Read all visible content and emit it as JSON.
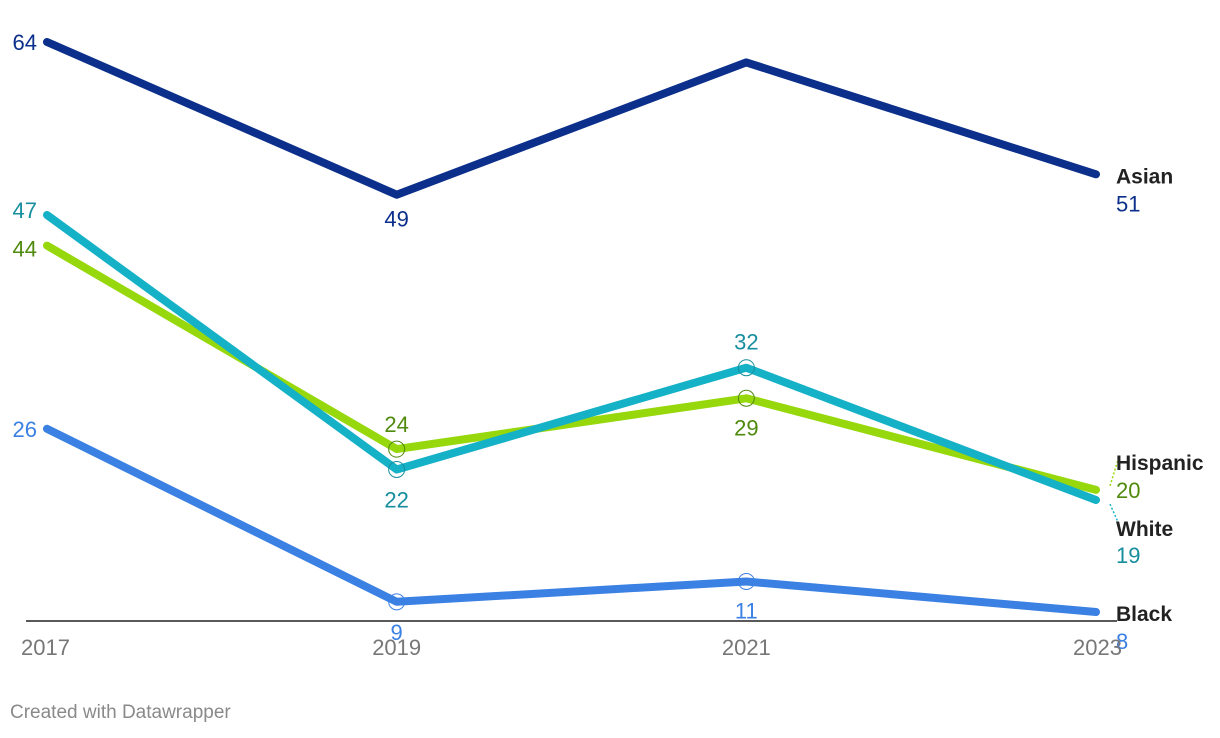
{
  "chart_data": {
    "type": "line",
    "x": [
      2017,
      2019,
      2021,
      2023
    ],
    "ylim": [
      0,
      70
    ],
    "grid": false,
    "legend": "direct labels at line ends",
    "series": [
      {
        "name": "Asian",
        "values": [
          64,
          49,
          62,
          51
        ],
        "color": "#0b2f8a",
        "label_color": "#0b2f8a",
        "value_labels": [
          "64",
          "49",
          "",
          "51"
        ]
      },
      {
        "name": "White",
        "values": [
          47,
          22,
          32,
          19
        ],
        "color": "#14b1c7",
        "label_color": "#168e9e",
        "value_labels": [
          "47",
          "22",
          "32",
          "19"
        ]
      },
      {
        "name": "Hispanic",
        "values": [
          44,
          24,
          29,
          20
        ],
        "color": "#96d80c",
        "label_color": "#4f8a0d",
        "value_labels": [
          "44",
          "24",
          "29",
          "20"
        ]
      },
      {
        "name": "Black",
        "values": [
          26,
          9,
          11,
          8
        ],
        "color": "#3b80e3",
        "label_color": "#3b80e3",
        "value_labels": [
          "26",
          "9",
          "11",
          "8"
        ]
      }
    ]
  },
  "credit": "Created with Datawrapper"
}
